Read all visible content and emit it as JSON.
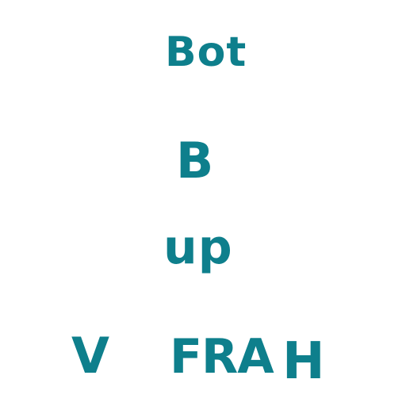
{
  "ink_color": "#0e7f8c",
  "background_color": "#ffffff",
  "words": [
    {
      "id": "bot",
      "text": "Bot"
    },
    {
      "id": "b",
      "text": "B"
    },
    {
      "id": "up",
      "text": "up"
    },
    {
      "id": "v",
      "text": "V"
    },
    {
      "id": "fra",
      "text": "FRA"
    },
    {
      "id": "h",
      "text": "H"
    }
  ]
}
